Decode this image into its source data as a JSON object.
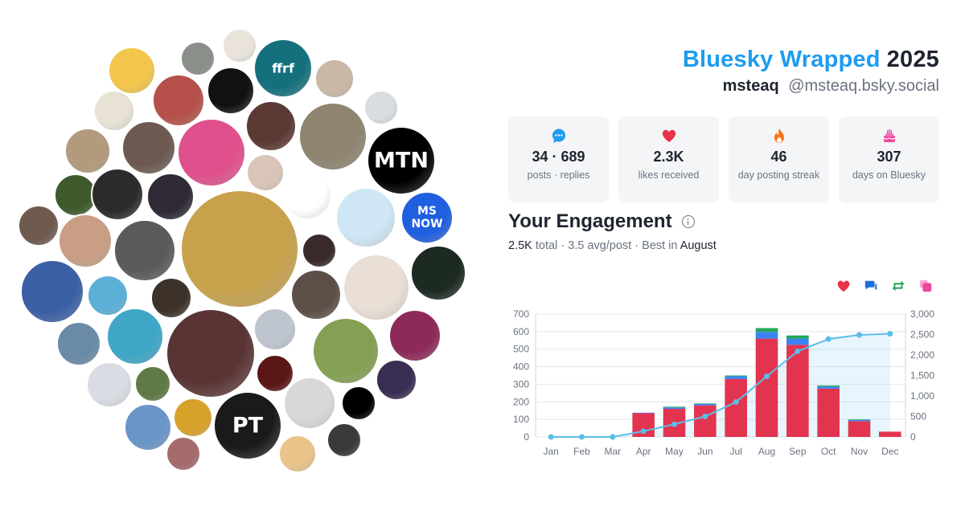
{
  "header": {
    "brand": "Bluesky Wrapped",
    "year": "2025",
    "display_name": "msteaq",
    "handle": "@msteaq.bsky.social"
  },
  "stats": [
    {
      "icon": "speech-bubble-icon",
      "color": "#1e9cf0",
      "value": "34 · 689",
      "label": "posts · replies"
    },
    {
      "icon": "heart-icon",
      "color": "#e8334a",
      "value": "2.3K",
      "label": "likes received"
    },
    {
      "icon": "flame-icon",
      "color": "#f97316",
      "value": "46",
      "label": "day posting streak"
    },
    {
      "icon": "cake-icon",
      "color": "#ec4899",
      "value": "307",
      "label": "days on Bluesky"
    }
  ],
  "engagement": {
    "title": "Your Engagement",
    "total": "2.5K",
    "total_word": "total",
    "avg": "3.5 avg/post",
    "best_prefix": "Best in",
    "best_month": "August"
  },
  "legend_icons": [
    {
      "name": "likes-heart-icon",
      "color": "#e8334a"
    },
    {
      "name": "replies-icon",
      "color": "#1e6fd9"
    },
    {
      "name": "reposts-icon",
      "color": "#16a34a"
    },
    {
      "name": "quotes-icon",
      "color": "#ec4899"
    }
  ],
  "colors": {
    "likes": "#e3344f",
    "replies": "#3b82f6",
    "reposts": "#22a75a",
    "quotes": "#f2a3c0",
    "cumulative": "#5bbde8",
    "brand": "#1e9cf0"
  },
  "chart_data": {
    "type": "bar",
    "categories": [
      "Jan",
      "Feb",
      "Mar",
      "Apr",
      "May",
      "Jun",
      "Jul",
      "Aug",
      "Sep",
      "Oct",
      "Nov",
      "Dec"
    ],
    "series": [
      {
        "key": "likes",
        "values": [
          0,
          0,
          0,
          135,
          160,
          180,
          330,
          560,
          525,
          275,
          90,
          30
        ]
      },
      {
        "key": "replies",
        "values": [
          0,
          0,
          0,
          3,
          8,
          8,
          15,
          38,
          35,
          12,
          7,
          0
        ]
      },
      {
        "key": "reposts",
        "values": [
          0,
          0,
          0,
          0,
          4,
          3,
          5,
          22,
          18,
          6,
          3,
          0
        ]
      },
      {
        "key": "cumulative",
        "axis": "right",
        "type": "line",
        "values": [
          0,
          0,
          0,
          140,
          310,
          500,
          850,
          1480,
          2090,
          2390,
          2490,
          2520
        ]
      }
    ],
    "ylim": [
      0,
      700
    ],
    "yticks": [
      "0",
      "100",
      "200",
      "300",
      "400",
      "500",
      "600",
      "700"
    ],
    "y2lim": [
      0,
      3000
    ],
    "y2ticks": [
      "0",
      "500",
      "1,000",
      "1,500",
      "2,000",
      "2,500",
      "3,000"
    ],
    "grid": true
  },
  "avatars": [
    {
      "name": "avatar-superhero",
      "color": "#f3c64b",
      "fg": "#d9312c",
      "label": ""
    },
    {
      "name": "avatar-man-beard",
      "color": "#8a8f8a",
      "fg": "#fff",
      "label": ""
    },
    {
      "name": "avatar-pixel-hat",
      "color": "#e9e3dc",
      "fg": "#c8342c",
      "label": ""
    },
    {
      "name": "avatar-ffrf",
      "color": "#14707c",
      "fg": "#ffffff",
      "label": "ffrf"
    },
    {
      "name": "avatar-older-woman",
      "color": "#c9b8a6",
      "fg": "#fff",
      "label": ""
    },
    {
      "name": "avatar-dark-square",
      "color": "#111111",
      "fg": "#fff",
      "label": ""
    },
    {
      "name": "avatar-shield",
      "color": "#e7e2d4",
      "fg": "#f1c40f",
      "label": ""
    },
    {
      "name": "avatar-senator",
      "color": "#b5514a",
      "fg": "#fff",
      "label": ""
    },
    {
      "name": "avatar-man-shrug",
      "color": "#d8dde2",
      "fg": "#fff",
      "label": ""
    },
    {
      "name": "avatar-cat",
      "color": "#b39a7d",
      "fg": "#fff",
      "label": ""
    },
    {
      "name": "avatar-older-man",
      "color": "#6c5a52",
      "fg": "#fff",
      "label": ""
    },
    {
      "name": "avatar-rainbow-flag",
      "color": "#e0508c",
      "fg": "#fff",
      "label": ""
    },
    {
      "name": "avatar-woman-redhair",
      "color": "#5b3a34",
      "fg": "#fff",
      "label": ""
    },
    {
      "name": "avatar-woman-blonde",
      "color": "#8e8470",
      "fg": "#fff",
      "label": ""
    },
    {
      "name": "avatar-mtn",
      "color": "#000000",
      "fg": "#ffffff",
      "label": "MTN"
    },
    {
      "name": "avatar-professor",
      "color": "#3e5a2c",
      "fg": "#fff",
      "label": ""
    },
    {
      "name": "avatar-oakland",
      "color": "#2b2b2b",
      "fg": "#fff",
      "label": ""
    },
    {
      "name": "avatar-woman-smile",
      "color": "#2f2a35",
      "fg": "#fff",
      "label": ""
    },
    {
      "name": "avatar-woman-light",
      "color": "#d8c5b8",
      "fg": "#fff",
      "label": ""
    },
    {
      "name": "avatar-lincoln",
      "color": "#ffffff",
      "fg": "#000",
      "label": ""
    },
    {
      "name": "avatar-alien",
      "color": "#cfe6f5",
      "fg": "#4fa3d6",
      "label": ""
    },
    {
      "name": "avatar-ms-now",
      "color": "#1f5fe0",
      "fg": "#ffffff",
      "label": "MS NOW"
    },
    {
      "name": "avatar-woman-dark",
      "color": "#6e5b4e",
      "fg": "#fff",
      "label": ""
    },
    {
      "name": "avatar-woman-portrait",
      "color": "#c99e84",
      "fg": "#fff",
      "label": ""
    },
    {
      "name": "avatar-person-bw",
      "color": "#5a5a5a",
      "fg": "#fff",
      "label": ""
    },
    {
      "name": "avatar-cat-mascot",
      "color": "#c8a24a",
      "fg": "#fff",
      "label": ""
    },
    {
      "name": "avatar-man-red",
      "color": "#3a2a2a",
      "fg": "#fff",
      "label": ""
    },
    {
      "name": "avatar-skeleton",
      "color": "#1c2a22",
      "fg": "#fff",
      "label": ""
    },
    {
      "name": "avatar-couple",
      "color": "#3b5fa5",
      "fg": "#fff",
      "label": ""
    },
    {
      "name": "avatar-hooded",
      "color": "#5cb0d8",
      "fg": "#fff",
      "label": ""
    },
    {
      "name": "avatar-dog",
      "color": "#3c322a",
      "fg": "#fff",
      "label": ""
    },
    {
      "name": "avatar-man-smile",
      "color": "#5d4f47",
      "fg": "#fff",
      "label": ""
    },
    {
      "name": "avatar-woman-older-blonde",
      "color": "#e9dfd6",
      "fg": "#fff",
      "label": ""
    },
    {
      "name": "avatar-purple-hand",
      "color": "#8e2a5a",
      "fg": "#fff",
      "label": ""
    },
    {
      "name": "avatar-glasses-man",
      "color": "#6a8aa8",
      "fg": "#fff",
      "label": ""
    },
    {
      "name": "avatar-beard-glasses",
      "color": "#3fa6c7",
      "fg": "#fff",
      "label": ""
    },
    {
      "name": "avatar-woman-flag",
      "color": "#5a3434",
      "fg": "#fff",
      "label": ""
    },
    {
      "name": "avatar-bernie",
      "color": "#bfc5cf",
      "fg": "#fff",
      "label": ""
    },
    {
      "name": "avatar-takei",
      "color": "#84a052",
      "fg": "#fff",
      "label": ""
    },
    {
      "name": "avatar-face-paint",
      "color": "#d9dde3",
      "fg": "#c8342c",
      "label": ""
    },
    {
      "name": "avatar-field",
      "color": "#5f7a45",
      "fg": "#fff",
      "label": ""
    },
    {
      "name": "avatar-woman-red-bg",
      "color": "#5a1616",
      "fg": "#fff",
      "label": ""
    },
    {
      "name": "avatar-woman-stage",
      "color": "#3a2d52",
      "fg": "#fff",
      "label": ""
    },
    {
      "name": "avatar-pt",
      "color": "#1a1a1a",
      "fg": "#ffffff",
      "label": "PT"
    },
    {
      "name": "avatar-cartoon-woman",
      "color": "#d8d8d8",
      "fg": "#fff",
      "label": ""
    },
    {
      "name": "avatar-robot",
      "color": "#000000",
      "fg": "#ffffff",
      "label": ""
    },
    {
      "name": "avatar-cap-man",
      "color": "#6a95c9",
      "fg": "#fff",
      "label": ""
    },
    {
      "name": "avatar-woman-yellow",
      "color": "#d7a22a",
      "fg": "#fff",
      "label": ""
    },
    {
      "name": "avatar-man-beard-2",
      "color": "#a56b6b",
      "fg": "#fff",
      "label": ""
    },
    {
      "name": "avatar-pizza",
      "color": "#e9c48a",
      "fg": "#fff",
      "label": ""
    },
    {
      "name": "avatar-gold-figure",
      "color": "#3a3a3a",
      "fg": "#f1c40f",
      "label": ""
    }
  ]
}
